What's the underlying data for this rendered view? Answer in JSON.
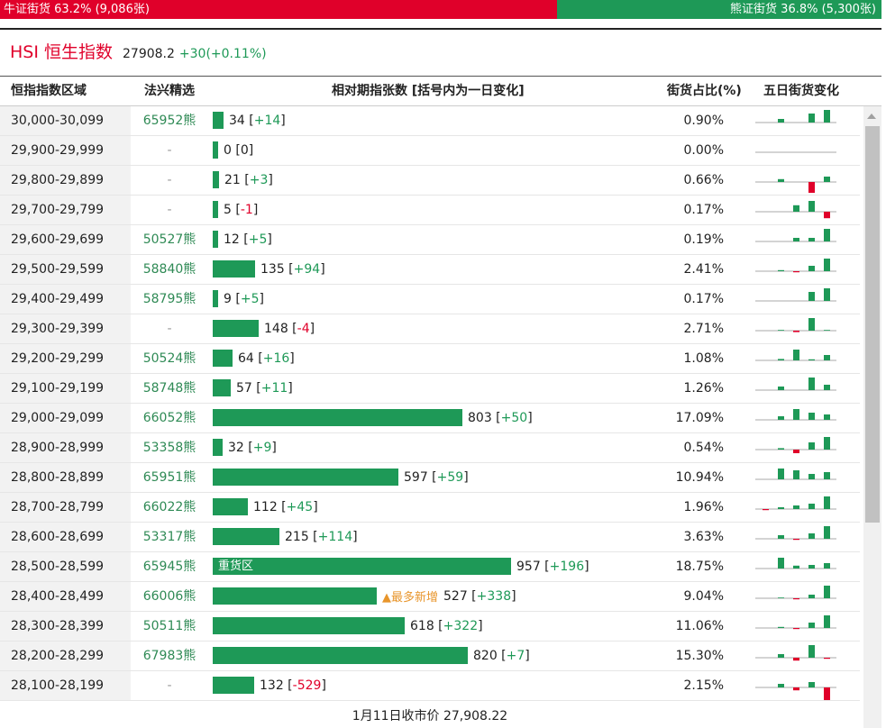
{
  "ratio_bar": {
    "bull_label": "牛证街货 63.2% (9,086张)",
    "bear_label": "熊证街货 36.8% (5,300张)",
    "bull_fraction": 0.632
  },
  "index": {
    "name": "HSI 恒生指数",
    "value": "27908.2",
    "change": "+30(+0.11%)"
  },
  "headers": {
    "range": "恒指指数区域",
    "pick": "法兴精选",
    "relative": "相对期指张数 [括号内为一日变化]",
    "ratio": "街货占比(%)",
    "five_day": "五日街货变化"
  },
  "rows": [
    {
      "range": "30,000-30,099",
      "pick": "65952熊",
      "value": 34,
      "count": "34",
      "change": "+14",
      "pct": "0.90%",
      "note": "",
      "spark": [
        0,
        1,
        0,
        2.5,
        3.5
      ]
    },
    {
      "range": "29,900-29,999",
      "pick": "-",
      "value": 0,
      "count": "0",
      "change": "0",
      "pct": "0.00%",
      "note": "",
      "spark": [
        0,
        0,
        0,
        0,
        0
      ]
    },
    {
      "range": "29,800-29,899",
      "pick": "-",
      "value": 21,
      "count": "21",
      "change": "+3",
      "pct": "0.66%",
      "note": "",
      "spark": [
        0,
        0.8,
        0,
        -3,
        1.5
      ]
    },
    {
      "range": "29,700-29,799",
      "pick": "-",
      "value": 5,
      "count": "5",
      "change": "-1",
      "pct": "0.17%",
      "note": "",
      "spark": [
        0,
        0,
        1.8,
        3,
        -1.8
      ]
    },
    {
      "range": "29,600-29,699",
      "pick": "50527熊",
      "value": 12,
      "count": "12",
      "change": "+5",
      "pct": "0.19%",
      "note": "",
      "spark": [
        0,
        0,
        1,
        1,
        3.5
      ]
    },
    {
      "range": "29,500-29,599",
      "pick": "58840熊",
      "value": 135,
      "count": "135",
      "change": "+94",
      "pct": "2.41%",
      "note": "",
      "spark": [
        0,
        0.3,
        -0.3,
        1.5,
        3.5
      ]
    },
    {
      "range": "29,400-29,499",
      "pick": "58795熊",
      "value": 9,
      "count": "9",
      "change": "+5",
      "pct": "0.17%",
      "note": "",
      "spark": [
        0,
        0,
        0,
        2.5,
        3.5
      ]
    },
    {
      "range": "29,300-29,399",
      "pick": "-",
      "value": 148,
      "count": "148",
      "change": "-4",
      "pct": "2.71%",
      "note": "",
      "spark": [
        0,
        0.2,
        -0.4,
        3.5,
        0.2
      ]
    },
    {
      "range": "29,200-29,299",
      "pick": "50524熊",
      "value": 64,
      "count": "64",
      "change": "+16",
      "pct": "1.08%",
      "note": "",
      "spark": [
        0,
        0.4,
        3,
        0.3,
        1.5
      ]
    },
    {
      "range": "29,100-29,199",
      "pick": "58748熊",
      "value": 57,
      "count": "57",
      "change": "+11",
      "pct": "1.26%",
      "note": "",
      "spark": [
        0,
        1,
        0,
        3.5,
        1.5
      ]
    },
    {
      "range": "29,000-29,099",
      "pick": "66052熊",
      "value": 803,
      "count": "803",
      "change": "+50",
      "pct": "17.09%",
      "note": "",
      "spark": [
        0,
        1,
        3,
        2,
        1.5
      ]
    },
    {
      "range": "28,900-28,999",
      "pick": "53358熊",
      "value": 32,
      "count": "32",
      "change": "+9",
      "pct": "0.54%",
      "note": "",
      "spark": [
        0,
        0.4,
        -1,
        2,
        3.5
      ]
    },
    {
      "range": "28,800-28,899",
      "pick": "65951熊",
      "value": 597,
      "count": "597",
      "change": "+59",
      "pct": "10.94%",
      "note": "",
      "spark": [
        0,
        3,
        2.5,
        1.5,
        2
      ]
    },
    {
      "range": "28,700-28,799",
      "pick": "66022熊",
      "value": 112,
      "count": "112",
      "change": "+45",
      "pct": "1.96%",
      "note": "",
      "spark": [
        -0.3,
        0.5,
        1,
        1.5,
        3.5
      ]
    },
    {
      "range": "28,600-28,699",
      "pick": "53317熊",
      "value": 215,
      "count": "215",
      "change": "+114",
      "pct": "3.63%",
      "note": "",
      "spark": [
        0,
        1,
        -0.3,
        1.5,
        3.5
      ]
    },
    {
      "range": "28,500-28,599",
      "pick": "65945熊",
      "value": 957,
      "count": "957",
      "change": "+196",
      "pct": "18.75%",
      "note": "",
      "bar_label": "重货区",
      "spark": [
        0,
        3,
        0.8,
        1,
        1.5
      ]
    },
    {
      "range": "28,400-28,499",
      "pick": "66006熊",
      "value": 527,
      "count": "527",
      "change": "+338",
      "pct": "9.04%",
      "note": "▲最多新增",
      "spark": [
        0,
        0.2,
        -0.3,
        1,
        3.5
      ]
    },
    {
      "range": "28,300-28,399",
      "pick": "50511熊",
      "value": 618,
      "count": "618",
      "change": "+322",
      "pct": "11.06%",
      "note": "",
      "spark": [
        0,
        0.3,
        -0.3,
        1.5,
        3.5
      ]
    },
    {
      "range": "28,200-28,299",
      "pick": "67983熊",
      "value": 820,
      "count": "820",
      "change": "+7",
      "pct": "15.30%",
      "note": "",
      "spark": [
        0,
        1,
        -0.8,
        3.5,
        -0.3
      ]
    },
    {
      "range": "28,100-28,199",
      "pick": "-",
      "value": 132,
      "count": "132",
      "change": "-529",
      "pct": "2.15%",
      "note": "",
      "spark": [
        0,
        1,
        -0.8,
        1.5,
        -3.5
      ]
    }
  ],
  "footer": "1月11日收市价 27,908.22",
  "colors": {
    "bull": "#e0002a",
    "bear": "#1e9957"
  }
}
